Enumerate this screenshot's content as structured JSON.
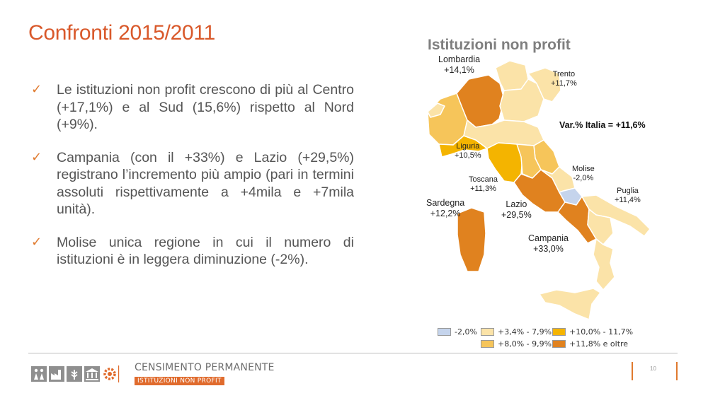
{
  "slide": {
    "title": "Confronti 2015/2011",
    "page_number": "10"
  },
  "bullets": [
    {
      "text": "Le istituzioni non profit crescono di più al Centro (+17,1%) e al Sud (15,6%) rispetto al Nord (+9%)."
    },
    {
      "text": "Campania (con il +33%) e Lazio (+29,5%) registrano l’incremento più ampio (pari in termini assoluti rispettivamente a +4mila e +7mila unità)."
    },
    {
      "text": "Molise unica regione in cui il numero di istituzioni è in leggera diminuzione (-2%)."
    }
  ],
  "map": {
    "title": "Istituzioni non profit",
    "national": "Var.% Italia = +11,6%",
    "labels": {
      "lombardia_name": "Lombardia",
      "lombardia_val": "+14,1%",
      "trento_name": "Trento",
      "trento_val": "+11,7%",
      "liguria_name": "Liguria",
      "liguria_val": "+10,5%",
      "molise_name": "Molise",
      "molise_val": "-2,0%",
      "toscana_name": "Toscana",
      "toscana_val": "+11,3%",
      "puglia_name": "Puglia",
      "puglia_val": "+11,4%",
      "sardegna_name": "Sardegna",
      "sardegna_val": "+12,2%",
      "lazio_name": "Lazio",
      "lazio_val": "+29,5%",
      "campania_name": "Campania",
      "campania_val": "+33,0%"
    },
    "legend": [
      {
        "label": "-2,0%",
        "color": "#c5d4ec"
      },
      {
        "label": "+3,4% - 7,9%",
        "color": "#fbe3a8"
      },
      {
        "label": "+10,0% - 11,7%",
        "color": "#f4b400"
      },
      {
        "label": "+8,0% - 9,9%",
        "color": "#f6c55a"
      },
      {
        "label": "+11,8% e oltre",
        "color": "#e0821f"
      }
    ]
  },
  "footer": {
    "census_top": "CENSIMENTO PERMANENTE",
    "census_bottom": "ISTITUZIONI NON PROFIT"
  },
  "colors": {
    "accent": "#d9592b",
    "lightest": "#fbe3a8",
    "mid": "#f6c55a",
    "strong": "#f4b400",
    "darkest": "#e0821f",
    "decline": "#c5d4ec"
  }
}
